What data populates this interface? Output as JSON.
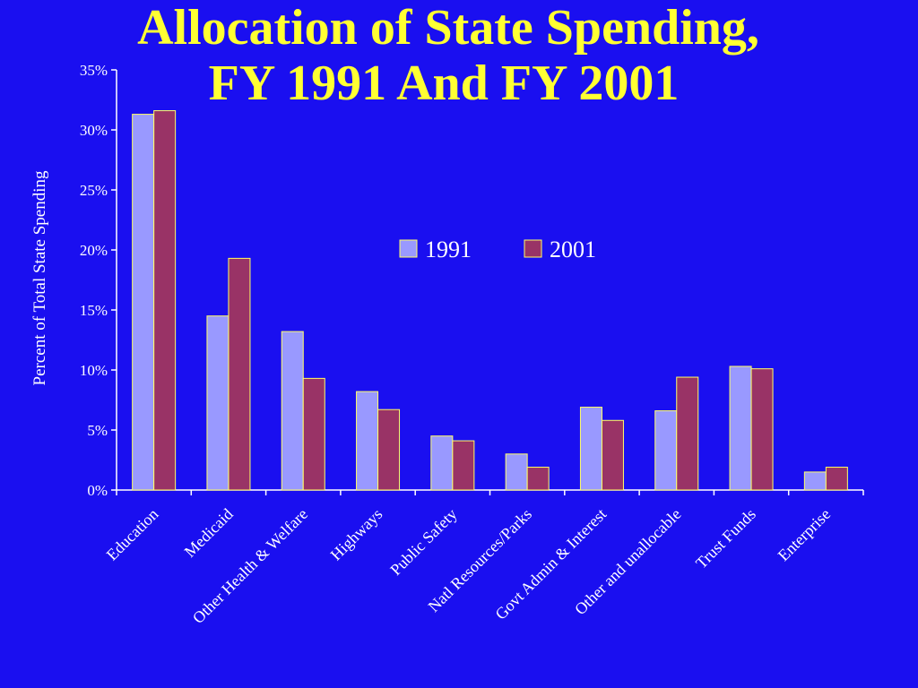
{
  "title": {
    "line1": "Allocation of State Spending,",
    "line2": "FY 1991 And FY 2001"
  },
  "chart_data": {
    "type": "bar",
    "title": "Allocation of State Spending, FY 1991 And FY 2001",
    "ylabel": "Percent of Total State Spending",
    "xlabel": "",
    "ylim": [
      0,
      35
    ],
    "yticks": [
      "0%",
      "5%",
      "10%",
      "15%",
      "20%",
      "25%",
      "30%",
      "35%"
    ],
    "ytick_values": [
      0,
      5,
      10,
      15,
      20,
      25,
      30,
      35
    ],
    "grid": false,
    "legend_position": "center-right",
    "categories": [
      "Education",
      "Medicaid",
      "Other Health & Welfare",
      "Highways",
      "Public Safety",
      "Natl Resources/Parks",
      "Govt Admin & Interest",
      "Other and unallocable",
      "Trust Funds",
      "Enterprise"
    ],
    "series": [
      {
        "name": "1991",
        "color": "#9999ff",
        "values": [
          31.3,
          14.5,
          13.2,
          8.2,
          4.5,
          3.0,
          6.9,
          6.6,
          10.3,
          1.5
        ]
      },
      {
        "name": "2001",
        "color": "#993366",
        "values": [
          31.6,
          19.3,
          9.3,
          6.7,
          4.1,
          1.9,
          5.8,
          9.4,
          10.1,
          1.9
        ]
      }
    ]
  }
}
